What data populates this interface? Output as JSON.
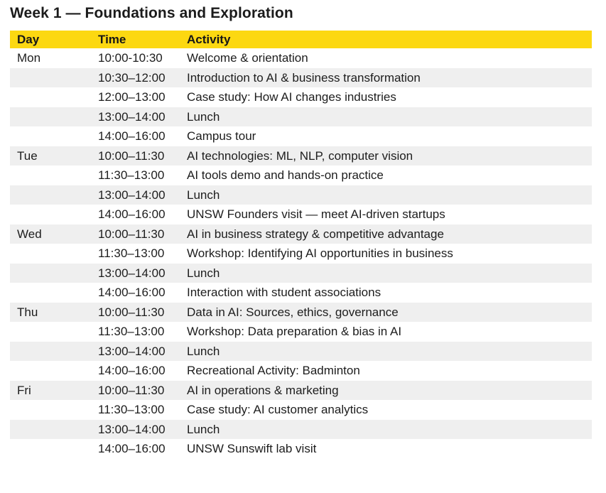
{
  "title": "Week 1 — Foundations and Exploration",
  "colors": {
    "header_bg": "#FCD811",
    "row_alt_bg": "#EFEFEF",
    "text": "#1D1D1D"
  },
  "table": {
    "columns": [
      "Day",
      "Time",
      "Activity"
    ],
    "rows": [
      {
        "day": "Mon",
        "time": "10:00-10:30",
        "activity": "Welcome & orientation"
      },
      {
        "day": "",
        "time": "10:30–12:00",
        "activity": "Introduction to AI & business transformation"
      },
      {
        "day": "",
        "time": "12:00–13:00",
        "activity": "Case study: How AI changes industries"
      },
      {
        "day": "",
        "time": "13:00–14:00",
        "activity": "Lunch"
      },
      {
        "day": "",
        "time": "14:00–16:00",
        "activity": "Campus tour"
      },
      {
        "day": "Tue",
        "time": "10:00–11:30",
        "activity": "AI technologies: ML, NLP, computer vision"
      },
      {
        "day": "",
        "time": "11:30–13:00",
        "activity": "AI tools demo and hands-on practice"
      },
      {
        "day": "",
        "time": "13:00–14:00",
        "activity": "Lunch"
      },
      {
        "day": "",
        "time": "14:00–16:00",
        "activity": "UNSW Founders visit — meet AI-driven startups"
      },
      {
        "day": "Wed",
        "time": "10:00–11:30",
        "activity": "AI in business strategy & competitive advantage"
      },
      {
        "day": "",
        "time": "11:30–13:00",
        "activity": "Workshop: Identifying AI opportunities in business"
      },
      {
        "day": "",
        "time": "13:00–14:00",
        "activity": "Lunch"
      },
      {
        "day": "",
        "time": "14:00–16:00",
        "activity": "Interaction with student associations"
      },
      {
        "day": "Thu",
        "time": "10:00–11:30",
        "activity": "Data in AI: Sources, ethics, governance"
      },
      {
        "day": "",
        "time": "11:30–13:00",
        "activity": "Workshop: Data preparation & bias in AI"
      },
      {
        "day": "",
        "time": "13:00–14:00",
        "activity": "Lunch"
      },
      {
        "day": "",
        "time": "14:00–16:00",
        "activity": "Recreational Activity: Badminton"
      },
      {
        "day": "Fri",
        "time": "10:00–11:30",
        "activity": "AI in operations & marketing"
      },
      {
        "day": "",
        "time": "11:30–13:00",
        "activity": "Case study: AI customer analytics"
      },
      {
        "day": "",
        "time": "13:00–14:00",
        "activity": "Lunch"
      },
      {
        "day": "",
        "time": "14:00–16:00",
        "activity": "UNSW Sunswift lab visit"
      }
    ]
  }
}
